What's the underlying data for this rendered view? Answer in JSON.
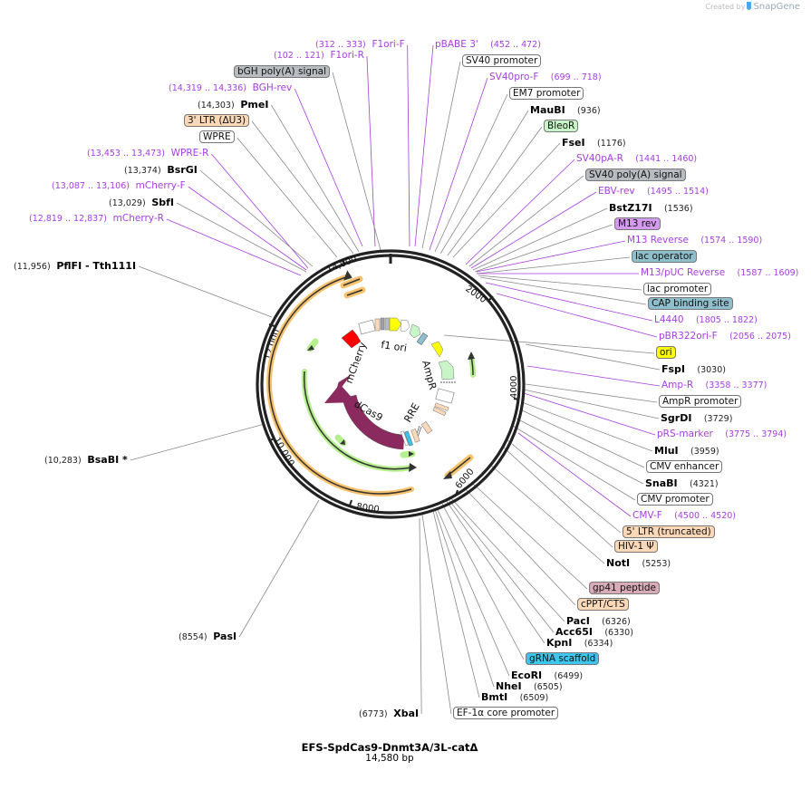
{
  "credit": {
    "prefix": "Created by",
    "brand": "SnapGene"
  },
  "plasmid": {
    "name": "EFS-SpdCas9-Dnmt3A/3L-catΔ",
    "size": "14,580 bp"
  },
  "colors": {
    "primer": "#a63ee0",
    "enzyme": "#000000",
    "backbone": "#222222",
    "dCas9": "#8b2a5e",
    "mCherry": "#ff0000",
    "ori": "#ffff00",
    "orange_orf": "#f7c26b",
    "green_orf": "#b6ef8e"
  },
  "ring_ticks": [
    {
      "label": "14,000"
    },
    {
      "label": "12,000"
    },
    {
      "label": "10,000"
    },
    {
      "label": "8000"
    },
    {
      "label": "6000"
    },
    {
      "label": "4000"
    },
    {
      "label": "2000"
    }
  ],
  "inner_labels": {
    "mcherry": "mCherry",
    "f1ori": "f1 ori",
    "ampr": "AmpR",
    "dcas9": "dCas9",
    "rre": "RRE"
  },
  "labels": [
    {
      "id": "f1ori-f",
      "type": "primer",
      "name": "F1ori-F",
      "pos": "(312 .. 333)",
      "side": "left"
    },
    {
      "id": "f1ori-r",
      "type": "primer",
      "name": "F1ori-R",
      "pos": "(102 .. 121)",
      "side": "left"
    },
    {
      "id": "bgh-polya",
      "type": "feature",
      "name": "bGH poly(A) signal",
      "bg": "#b8bcc0"
    },
    {
      "id": "bgh-rev",
      "type": "primer",
      "name": "BGH-rev",
      "pos": "(14,319 .. 14,336)",
      "side": "left"
    },
    {
      "id": "pmei",
      "type": "enzyme",
      "name": "PmeI",
      "pos": "(14,303)",
      "side": "left"
    },
    {
      "id": "3ltr",
      "type": "feature",
      "name": "3' LTR (ΔU3)",
      "bg": "#fbd8b8"
    },
    {
      "id": "wpre",
      "type": "feature",
      "name": "WPRE",
      "bg": "#ffffff"
    },
    {
      "id": "wpre-r",
      "type": "primer",
      "name": "WPRE-R",
      "pos": "(13,453 .. 13,473)",
      "side": "left"
    },
    {
      "id": "bsrgi",
      "type": "enzyme",
      "name": "BsrGI",
      "pos": "(13,374)",
      "side": "left"
    },
    {
      "id": "mcherry-f",
      "type": "primer",
      "name": "mCherry-F",
      "pos": "(13,087 .. 13,106)",
      "side": "left"
    },
    {
      "id": "sbfi",
      "type": "enzyme",
      "name": "SbfI",
      "pos": "(13,029)",
      "side": "left"
    },
    {
      "id": "mcherry-r",
      "type": "primer",
      "name": "mCherry-R",
      "pos": "(12,819 .. 12,837)",
      "side": "left"
    },
    {
      "id": "pflfi",
      "type": "enzyme",
      "name": "PflFI - Tth111I",
      "pos": "(11,956)",
      "side": "left"
    },
    {
      "id": "bsabi",
      "type": "enzyme",
      "name": "BsaBI *",
      "pos": "(10,283)",
      "side": "left"
    },
    {
      "id": "pasi",
      "type": "enzyme",
      "name": "PasI",
      "pos": "(8554)",
      "side": "left"
    },
    {
      "id": "xbai",
      "type": "enzyme",
      "name": "XbaI",
      "pos": "(6773)",
      "side": "left"
    },
    {
      "id": "pbabe3",
      "type": "primer",
      "name": "pBABE 3'",
      "pos": "(452 .. 472)",
      "side": "right"
    },
    {
      "id": "sv40-prom",
      "type": "feature",
      "name": "SV40 promoter",
      "bg": "#ffffff"
    },
    {
      "id": "sv40pro-f",
      "type": "primer",
      "name": "SV40pro-F",
      "pos": "(699 .. 718)",
      "side": "right"
    },
    {
      "id": "em7",
      "type": "feature",
      "name": "EM7 promoter",
      "bg": "#ffffff"
    },
    {
      "id": "maubi",
      "type": "enzyme",
      "name": "MauBI",
      "pos": "(936)",
      "side": "right"
    },
    {
      "id": "bleor",
      "type": "feature",
      "name": "BleoR",
      "bg": "#c8f5c8"
    },
    {
      "id": "fsei",
      "type": "enzyme",
      "name": "FseI",
      "pos": "(1176)",
      "side": "right"
    },
    {
      "id": "sv40pa-r",
      "type": "primer",
      "name": "SV40pA-R",
      "pos": "(1441 .. 1460)",
      "side": "right"
    },
    {
      "id": "sv40-polya",
      "type": "feature",
      "name": "SV40 poly(A) signal",
      "bg": "#b8bcc0"
    },
    {
      "id": "ebv-rev",
      "type": "primer",
      "name": "EBV-rev",
      "pos": "(1495 .. 1514)",
      "side": "right"
    },
    {
      "id": "bstz17i",
      "type": "enzyme",
      "name": "BstZ17I",
      "pos": "(1536)",
      "side": "right"
    },
    {
      "id": "m13rev-feat",
      "type": "feature",
      "name": "M13 rev",
      "bg": "#d49af0"
    },
    {
      "id": "m13-reverse",
      "type": "primer",
      "name": "M13 Reverse",
      "pos": "(1574 .. 1590)",
      "side": "right"
    },
    {
      "id": "lac-operator",
      "type": "feature",
      "name": "lac operator",
      "bg": "#8fbfcc"
    },
    {
      "id": "m13puc-reverse",
      "type": "primer",
      "name": "M13/pUC Reverse",
      "pos": "(1587 .. 1609)",
      "side": "right"
    },
    {
      "id": "lac-promoter",
      "type": "feature",
      "name": "lac promoter",
      "bg": "#ffffff"
    },
    {
      "id": "cap-site",
      "type": "feature",
      "name": "CAP binding site",
      "bg": "#8fbfcc"
    },
    {
      "id": "l4440",
      "type": "primer",
      "name": "L4440",
      "pos": "(1805 .. 1822)",
      "side": "right"
    },
    {
      "id": "pbr322ori-f",
      "type": "primer",
      "name": "pBR322ori-F",
      "pos": "(2056 .. 2075)",
      "side": "right"
    },
    {
      "id": "ori",
      "type": "feature",
      "name": "ori",
      "bg": "#ffff00"
    },
    {
      "id": "fspi",
      "type": "enzyme",
      "name": "FspI",
      "pos": "(3030)",
      "side": "right"
    },
    {
      "id": "amp-r",
      "type": "primer",
      "name": "Amp-R",
      "pos": "(3358 .. 3377)",
      "side": "right"
    },
    {
      "id": "ampr-prom",
      "type": "feature",
      "name": "AmpR promoter",
      "bg": "#ffffff"
    },
    {
      "id": "sgrdi",
      "type": "enzyme",
      "name": "SgrDI",
      "pos": "(3729)",
      "side": "right"
    },
    {
      "id": "prs-marker",
      "type": "primer",
      "name": "pRS-marker",
      "pos": "(3775 .. 3794)",
      "side": "right"
    },
    {
      "id": "mlui",
      "type": "enzyme",
      "name": "MluI",
      "pos": "(3959)",
      "side": "right"
    },
    {
      "id": "cmv-enh",
      "type": "feature",
      "name": "CMV enhancer",
      "bg": "#ffffff"
    },
    {
      "id": "snabi",
      "type": "enzyme",
      "name": "SnaBI",
      "pos": "(4321)",
      "side": "right"
    },
    {
      "id": "cmv-prom",
      "type": "feature",
      "name": "CMV promoter",
      "bg": "#ffffff"
    },
    {
      "id": "cmv-f",
      "type": "primer",
      "name": "CMV-F",
      "pos": "(4500 .. 4520)",
      "side": "right"
    },
    {
      "id": "5ltr",
      "type": "feature",
      "name": "5' LTR (truncated)",
      "bg": "#fbd8b8"
    },
    {
      "id": "hiv1psi",
      "type": "feature",
      "name": "HIV-1 Ψ",
      "bg": "#fbd8b8"
    },
    {
      "id": "noti",
      "type": "enzyme",
      "name": "NotI",
      "pos": "(5253)",
      "side": "right"
    },
    {
      "id": "gp41",
      "type": "feature",
      "name": "gp41 peptide",
      "bg": "#d9aab8"
    },
    {
      "id": "cppt",
      "type": "feature",
      "name": "cPPT/CTS",
      "bg": "#fbd8b8"
    },
    {
      "id": "paci",
      "type": "enzyme",
      "name": "PacI",
      "pos": "(6326)",
      "side": "right"
    },
    {
      "id": "acc65i",
      "type": "enzyme",
      "name": "Acc65I",
      "pos": "(6330)",
      "side": "right"
    },
    {
      "id": "kpni",
      "type": "enzyme",
      "name": "KpnI",
      "pos": "(6334)",
      "side": "right"
    },
    {
      "id": "grna",
      "type": "feature",
      "name": "gRNA scaffold",
      "bg": "#3cc6ee"
    },
    {
      "id": "ecori",
      "type": "enzyme",
      "name": "EcoRI",
      "pos": "(6499)",
      "side": "right"
    },
    {
      "id": "nhei",
      "type": "enzyme",
      "name": "NheI",
      "pos": "(6505)",
      "side": "right"
    },
    {
      "id": "bmti",
      "type": "enzyme",
      "name": "BmtI",
      "pos": "(6509)",
      "side": "right"
    },
    {
      "id": "ef1a",
      "type": "feature",
      "name": "EF-1α core promoter",
      "bg": "#ffffff"
    }
  ]
}
